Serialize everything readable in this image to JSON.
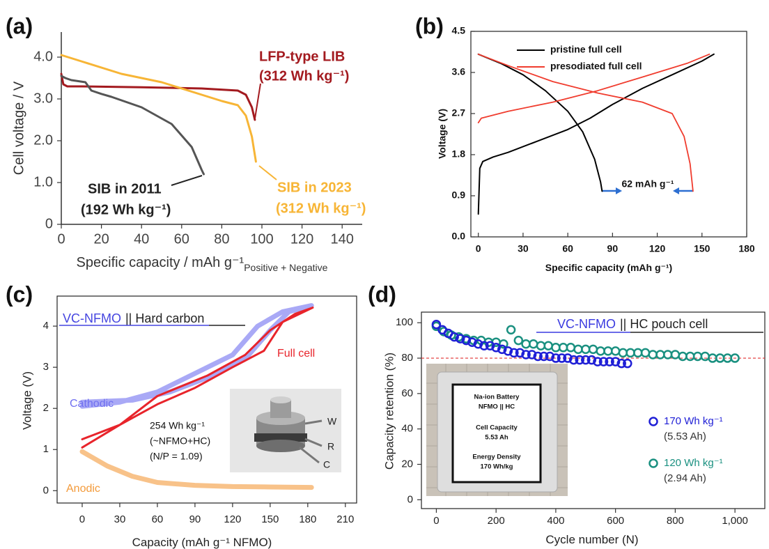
{
  "chart_data": [
    {
      "type": "line",
      "panel_label": "(a)",
      "frame": "axes",
      "xlabel": "Specific capacity / mAh g⁻¹",
      "xlabel_sub": "Positive + Negative",
      "ylabel": "Cell voltage / V",
      "xlim": [
        0,
        150
      ],
      "ylim": [
        0,
        4.6
      ],
      "xticks": [
        0,
        20,
        40,
        60,
        80,
        100,
        120,
        140
      ],
      "yticks": [
        0,
        {
          "value": 1,
          "label": "1.0"
        },
        {
          "value": 2,
          "label": "2.0"
        },
        {
          "value": 3,
          "label": "3.0"
        },
        {
          "value": 4,
          "label": "4.0"
        }
      ],
      "series": [
        {
          "name": "LFP-type LIB",
          "energy_label": "(312 Wh kg⁻¹)",
          "color": "#a31a1f",
          "x": [
            0,
            1,
            3,
            10,
            40,
            70,
            88,
            92,
            95,
            96.5
          ],
          "values": [
            3.6,
            3.35,
            3.3,
            3.3,
            3.28,
            3.25,
            3.2,
            3.1,
            2.8,
            2.5
          ]
        },
        {
          "name": "SIB in 2023",
          "energy_label": "(312 Wh kg⁻¹)",
          "color": "#f7b536",
          "x": [
            0,
            10,
            30,
            50,
            70,
            80,
            88,
            92,
            95,
            97
          ],
          "values": [
            4.05,
            3.9,
            3.6,
            3.4,
            3.1,
            2.95,
            2.85,
            2.6,
            2.1,
            1.5
          ]
        },
        {
          "name": "SIB in 2011",
          "energy_label": "(192 Wh kg⁻¹)",
          "color": "#555555",
          "x": [
            0,
            2,
            5,
            12,
            15,
            20,
            25,
            40,
            55,
            65,
            70,
            71
          ],
          "values": [
            3.55,
            3.5,
            3.45,
            3.4,
            3.2,
            3.12,
            3.05,
            2.8,
            2.4,
            1.85,
            1.3,
            1.2
          ]
        }
      ]
    },
    {
      "type": "line",
      "panel_label": "(b)",
      "frame": "box",
      "xlabel": "Specific capacity (mAh g⁻¹)",
      "ylabel": "Voltage (V)",
      "annotation": "62 mAh g⁻¹",
      "xlim": [
        -5,
        180
      ],
      "ylim": [
        0,
        4.5
      ],
      "xticks": [
        0,
        30,
        60,
        90,
        120,
        150,
        180
      ],
      "yticks": [
        {
          "value": 0,
          "label": "0.0"
        },
        0.9,
        1.8,
        2.7,
        3.6,
        4.5
      ],
      "series": [
        {
          "name": "pristine full cell",
          "color": "#000000",
          "x": [
            0,
            1,
            3,
            10,
            20,
            40,
            60,
            75,
            90,
            110,
            130,
            150,
            158,
            null,
            0,
            15,
            30,
            45,
            60,
            70,
            78,
            82,
            83
          ],
          "values": [
            0.5,
            1.5,
            1.65,
            1.75,
            1.85,
            2.1,
            2.35,
            2.6,
            2.9,
            3.25,
            3.55,
            3.85,
            4.0,
            null,
            4.0,
            3.8,
            3.55,
            3.2,
            2.75,
            2.3,
            1.7,
            1.2,
            1.0
          ]
        },
        {
          "name": "presodiated full cell",
          "color": "#f03c2e",
          "x": [
            0,
            2,
            20,
            50,
            80,
            110,
            140,
            155,
            null,
            0,
            20,
            50,
            80,
            110,
            130,
            138,
            142,
            144
          ],
          "values": [
            2.5,
            2.6,
            2.75,
            2.95,
            3.2,
            3.5,
            3.8,
            4.0,
            null,
            4.0,
            3.75,
            3.4,
            3.15,
            2.95,
            2.7,
            2.2,
            1.6,
            1.0
          ]
        }
      ]
    },
    {
      "type": "line",
      "panel_label": "(c)",
      "frame": "box",
      "title": "VC-NFMO",
      "title_suffix": "|| Hard carbon",
      "xlabel": "Capacity (mAh g⁻¹ NFMO)",
      "ylabel": "Voltage (V)",
      "annotations": [
        "254 Wh kg⁻¹",
        "(~NFMO+HC)",
        "(N/P = 1.09)"
      ],
      "inset_labels": [
        "W",
        "R",
        "C"
      ],
      "xlim": [
        -20,
        219
      ],
      "ylim": [
        -0.3,
        4.73
      ],
      "xticks": [
        0,
        30,
        60,
        90,
        120,
        150,
        180,
        210
      ],
      "yticks": [
        0,
        1,
        2,
        3,
        4
      ],
      "series": [
        {
          "name": "Cathodic",
          "color": "#6f6ff0",
          "x": [
            0,
            30,
            60,
            90,
            120,
            140,
            160,
            183,
            165,
            150,
            130,
            100,
            70,
            40,
            0
          ],
          "values": [
            2.05,
            2.15,
            2.4,
            2.85,
            3.3,
            4.0,
            4.35,
            4.5,
            4.35,
            3.9,
            3.2,
            2.75,
            2.4,
            2.2,
            2.15
          ]
        },
        {
          "name": "Full cell",
          "color": "#e8242b",
          "x": [
            0,
            30,
            60,
            100,
            130,
            150,
            170,
            184,
            160,
            145,
            120,
            90,
            60,
            30,
            0
          ],
          "values": [
            1.05,
            1.6,
            2.3,
            2.8,
            3.3,
            3.9,
            4.3,
            4.45,
            4.1,
            3.4,
            3.0,
            2.5,
            2.1,
            1.6,
            1.25
          ]
        },
        {
          "name": "Anodic",
          "color": "#f39a3a",
          "x": [
            0,
            20,
            40,
            60,
            90,
            120,
            150,
            183
          ],
          "values": [
            0.95,
            0.6,
            0.35,
            0.2,
            0.13,
            0.1,
            0.09,
            0.08
          ]
        }
      ]
    },
    {
      "type": "scatter",
      "panel_label": "(d)",
      "frame": "box",
      "title": "VC-NFMO",
      "title_suffix": "|| HC pouch cell",
      "xlabel": "Cycle number (N)",
      "ylabel": "Capacity retention (%)",
      "reference_line": 80,
      "inset_labels": [
        "Na-ion Battery",
        "NFMO || HC",
        "Cell Capacity",
        "5.53 Ah",
        "Energy Density",
        "170 Wh/kg"
      ],
      "xlim": [
        -50,
        1100
      ],
      "ylim": [
        -5,
        106
      ],
      "xticks": [
        0,
        200,
        400,
        600,
        800,
        {
          "value": 1000,
          "label": "1,000"
        }
      ],
      "yticks": [
        0,
        20,
        40,
        60,
        80,
        100
      ],
      "series": [
        {
          "name": "120 Wh kg⁻¹",
          "capacity_label": "(2.94 Ah)",
          "color": "#1a9080",
          "x": [
            0,
            25,
            50,
            75,
            100,
            125,
            150,
            175,
            200,
            225,
            250,
            275,
            300,
            325,
            350,
            375,
            400,
            425,
            450,
            475,
            500,
            525,
            550,
            575,
            600,
            625,
            650,
            675,
            700,
            725,
            750,
            775,
            800,
            825,
            850,
            875,
            900,
            925,
            950,
            975,
            1000
          ],
          "values": [
            98,
            95,
            93,
            92,
            91,
            90,
            90,
            89,
            89,
            88,
            96,
            90,
            88,
            88,
            87,
            87,
            86,
            86,
            86,
            85,
            85,
            85,
            84,
            84,
            84,
            83,
            83,
            83,
            83,
            82,
            82,
            82,
            82,
            81,
            81,
            81,
            81,
            80,
            80,
            80,
            80
          ]
        },
        {
          "name": "170 Wh kg⁻¹",
          "capacity_label": "(5.53 Ah)",
          "color": "#1f1fd6",
          "x": [
            0,
            20,
            40,
            60,
            80,
            100,
            120,
            140,
            160,
            180,
            200,
            220,
            240,
            260,
            280,
            300,
            320,
            340,
            360,
            380,
            400,
            420,
            440,
            460,
            480,
            500,
            520,
            540,
            560,
            580,
            600,
            620,
            640
          ],
          "values": [
            99,
            96,
            94,
            92,
            91,
            90,
            89,
            88,
            87,
            87,
            86,
            85,
            84,
            83,
            83,
            82,
            82,
            81,
            81,
            81,
            80,
            80,
            80,
            79,
            79,
            79,
            79,
            78,
            78,
            78,
            78,
            77,
            77
          ]
        }
      ]
    }
  ]
}
